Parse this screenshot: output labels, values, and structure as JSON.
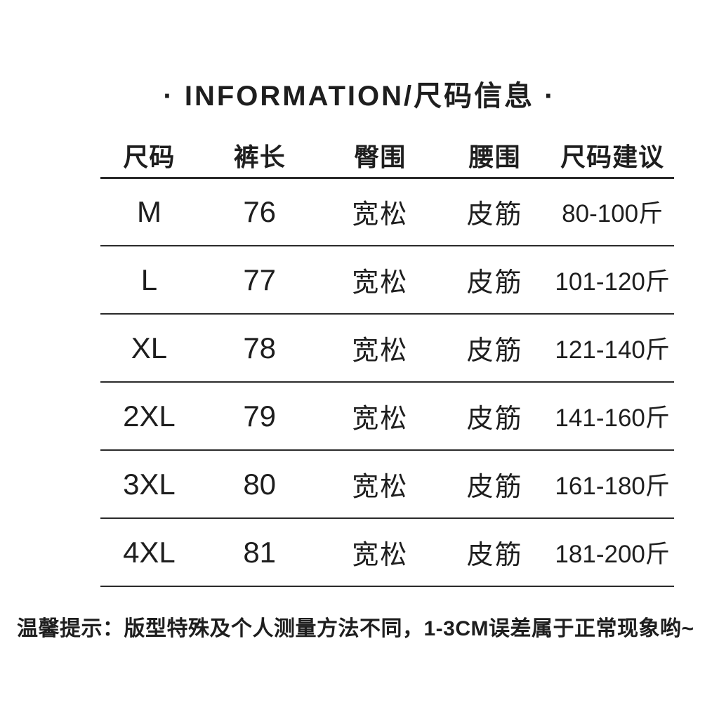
{
  "title": "· INFORMATION/尺码信息 ·",
  "table": {
    "headers": [
      "尺码",
      "裤长",
      "臀围",
      "腰围",
      "尺码建议"
    ],
    "rows": [
      [
        "M",
        "76",
        "宽松",
        "皮筋",
        "80-100斤"
      ],
      [
        "L",
        "77",
        "宽松",
        "皮筋",
        "101-120斤"
      ],
      [
        "XL",
        "78",
        "宽松",
        "皮筋",
        "121-140斤"
      ],
      [
        "2XL",
        "79",
        "宽松",
        "皮筋",
        "141-160斤"
      ],
      [
        "3XL",
        "80",
        "宽松",
        "皮筋",
        "161-180斤"
      ],
      [
        "4XL",
        "81",
        "宽松",
        "皮筋",
        "181-200斤"
      ]
    ]
  },
  "note": "温馨提示：版型特殊及个人测量方法不同，1-3CM误差属于正常现象哟~",
  "colors": {
    "text": "#1e1e1e",
    "line": "#2a2a2a",
    "background": "#ffffff"
  }
}
